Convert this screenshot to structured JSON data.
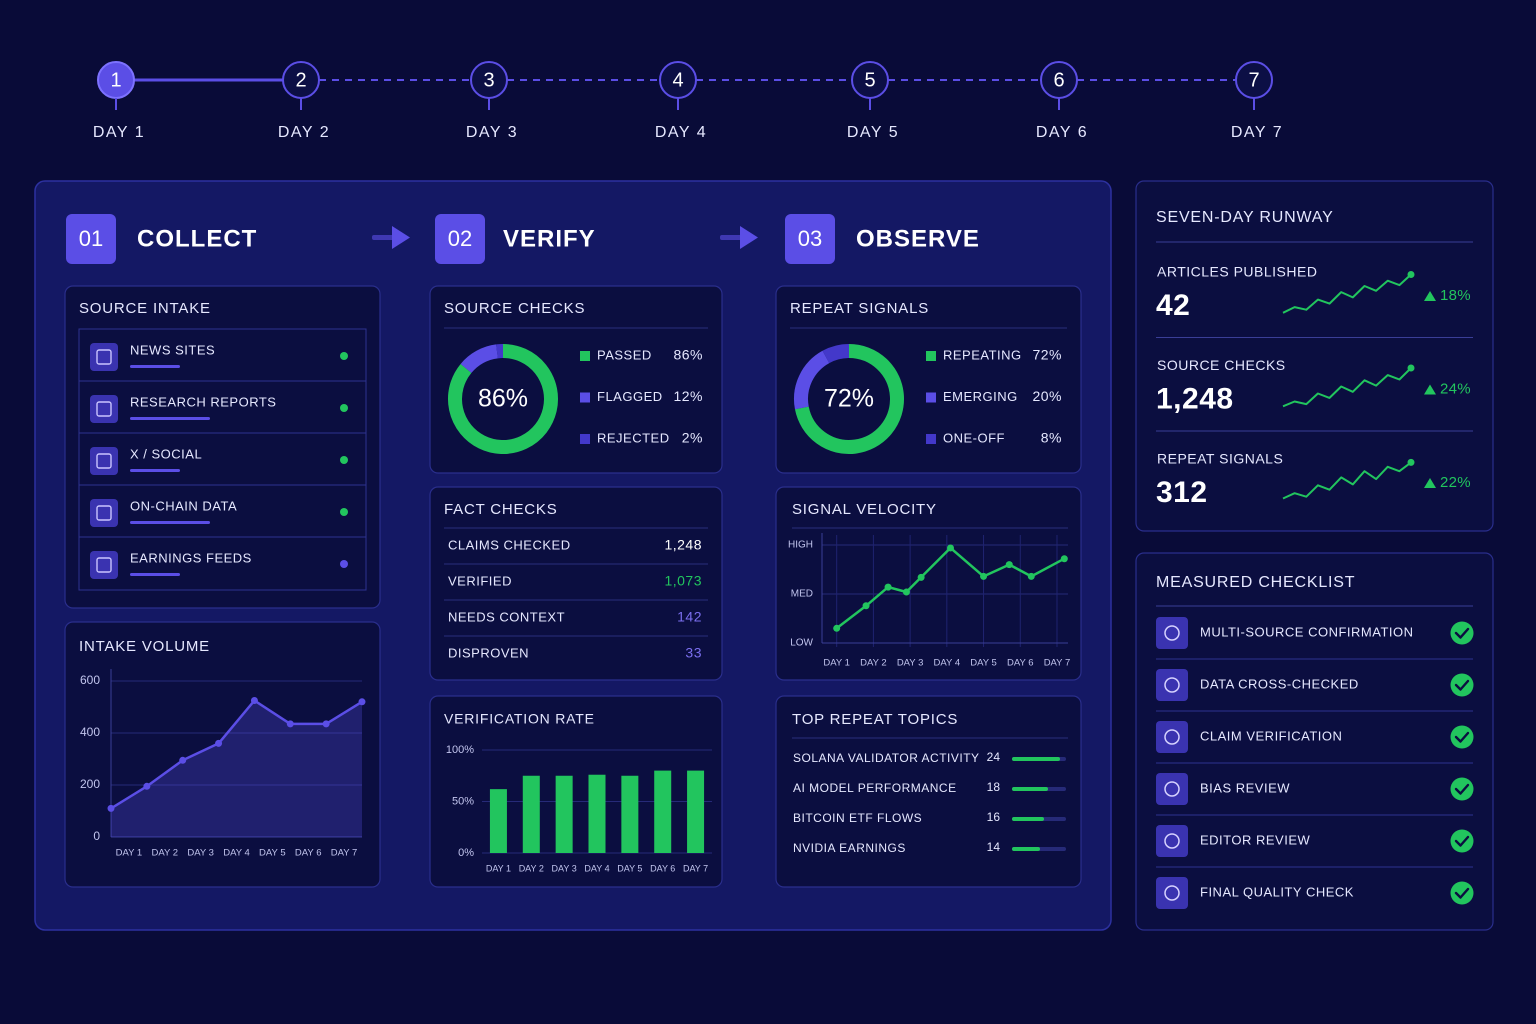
{
  "timeline": {
    "days": [
      {
        "number": 1,
        "label": "DAY 1"
      },
      {
        "number": 2,
        "label": "DAY 2"
      },
      {
        "number": 3,
        "label": "DAY 3"
      },
      {
        "number": 4,
        "label": "DAY 4"
      },
      {
        "number": 5,
        "label": "DAY 5"
      },
      {
        "number": 6,
        "label": "DAY 6"
      },
      {
        "number": 7,
        "label": "DAY 7"
      }
    ],
    "active_day": 1
  },
  "stages": [
    {
      "number": "01",
      "title": "COLLECT"
    },
    {
      "number": "02",
      "title": "VERIFY"
    },
    {
      "number": "03",
      "title": "OBSERVE"
    }
  ],
  "source_intake": {
    "title": "SOURCE INTAKE",
    "items": [
      {
        "label": "NEWS SITES",
        "status_color": "#22c55e"
      },
      {
        "label": "RESEARCH REPORTS",
        "status_color": "#22c55e"
      },
      {
        "label": "X / SOCIAL",
        "status_color": "#22c55e"
      },
      {
        "label": "ON-CHAIN DATA",
        "status_color": "#22c55e"
      },
      {
        "label": "EARNINGS FEEDS",
        "status_color": "#5b4ee6"
      }
    ]
  },
  "intake_volume": {
    "title": "INTAKE VOLUME",
    "type": "line",
    "color": "#5b4ee6",
    "x": [
      0,
      1,
      2,
      3,
      4,
      5,
      6,
      7
    ],
    "values": [
      110,
      195,
      295,
      360,
      525,
      435,
      435,
      520
    ],
    "xlim": [
      0,
      7
    ],
    "xticks": [
      {
        "value": 0.5,
        "label": "DAY 1"
      },
      {
        "value": 1.5,
        "label": "DAY 2"
      },
      {
        "value": 2.5,
        "label": "DAY 3"
      },
      {
        "value": 3.5,
        "label": "DAY 4"
      },
      {
        "value": 4.5,
        "label": "DAY 5"
      },
      {
        "value": 5.5,
        "label": "DAY 6"
      },
      {
        "value": 6.5,
        "label": "DAY 7"
      }
    ],
    "ylim": [
      0,
      600
    ],
    "yticks": [
      0,
      200,
      400,
      600
    ],
    "grid": true
  },
  "source_checks": {
    "title": "SOURCE CHECKS",
    "type": "donut",
    "center_label": "86%",
    "labels": [
      "PASSED",
      "FLAGGED",
      "REJECTED"
    ],
    "values": [
      86,
      12,
      2
    ],
    "value_labels": [
      "86%",
      "12%",
      "2%"
    ],
    "colors": [
      "#22c55e",
      "#5b4ee6",
      "#4338ca"
    ]
  },
  "fact_checks": {
    "title": "FACT CHECKS",
    "rows": [
      {
        "label": "CLAIMS CHECKED",
        "value": "1,248",
        "color": "#ffffff"
      },
      {
        "label": "VERIFIED",
        "value": "1,073",
        "color": "#22c55e"
      },
      {
        "label": "NEEDS CONTEXT",
        "value": "142",
        "color": "#7b6ff0"
      },
      {
        "label": "DISPROVEN",
        "value": "33",
        "color": "#7b6ff0"
      }
    ]
  },
  "verification_rate": {
    "title": "VERIFICATION RATE",
    "type": "bar",
    "color": "#22c55e",
    "categories": [
      "DAY 1",
      "DAY 2",
      "DAY 3",
      "DAY 4",
      "DAY 5",
      "DAY 6",
      "DAY 7"
    ],
    "values": [
      62,
      75,
      75,
      76,
      75,
      80,
      80
    ],
    "ylim": [
      0,
      100
    ],
    "yticks": [
      {
        "value": 0,
        "label": "0%"
      },
      {
        "value": 50,
        "label": "50%"
      },
      {
        "value": 100,
        "label": "100%"
      }
    ],
    "grid": true
  },
  "repeat_signals": {
    "title": "REPEAT SIGNALS",
    "type": "donut",
    "center_label": "72%",
    "labels": [
      "REPEATING",
      "EMERGING",
      "ONE-OFF"
    ],
    "values": [
      72,
      20,
      8
    ],
    "value_labels": [
      "72%",
      "20%",
      "8%"
    ],
    "colors": [
      "#22c55e",
      "#5b4ee6",
      "#4338ca"
    ]
  },
  "signal_velocity": {
    "title": "SIGNAL VELOCITY",
    "type": "line",
    "color": "#22c55e",
    "x": [
      1.0,
      1.8,
      2.4,
      2.9,
      3.3,
      4.1,
      5.0,
      5.7,
      6.3,
      7.2
    ],
    "values": [
      15,
      38,
      57,
      52,
      67,
      97,
      68,
      80,
      68,
      86
    ],
    "xlim": [
      0.6,
      7.3
    ],
    "xticks": [
      {
        "value": 1,
        "label": "DAY 1"
      },
      {
        "value": 2,
        "label": "DAY 2"
      },
      {
        "value": 3,
        "label": "DAY 3"
      },
      {
        "value": 4,
        "label": "DAY 4"
      },
      {
        "value": 5,
        "label": "DAY 5"
      },
      {
        "value": 6,
        "label": "DAY 6"
      },
      {
        "value": 7,
        "label": "DAY 7"
      }
    ],
    "ylim": [
      0,
      100
    ],
    "yticks": [
      {
        "value": 0,
        "label": "LOW"
      },
      {
        "value": 50,
        "label": "MED"
      },
      {
        "value": 100,
        "label": "HIGH"
      }
    ],
    "grid": true
  },
  "top_repeat_topics": {
    "title": "TOP REPEAT TOPICS",
    "type": "bar",
    "color": "#22c55e",
    "xlim": [
      0,
      27
    ],
    "categories": [
      "SOLANA VALIDATOR ACTIVITY",
      "AI MODEL PERFORMANCE",
      "BITCOIN ETF FLOWS",
      "NVIDIA EARNINGS"
    ],
    "values": [
      24,
      18,
      16,
      14
    ]
  },
  "runway": {
    "title": "SEVEN-DAY RUNWAY",
    "trend_ylim": [
      0,
      100
    ],
    "trend_color": "#22c55e",
    "metrics": [
      {
        "label": "ARTICLES PUBLISHED",
        "value": "42",
        "change": "18%",
        "trend": [
          5,
          18,
          12,
          35,
          26,
          52,
          40,
          66,
          55,
          78,
          68,
          92
        ]
      },
      {
        "label": "SOURCE CHECKS",
        "value": "1,248",
        "change": "24%",
        "trend": [
          5,
          16,
          10,
          34,
          24,
          50,
          38,
          64,
          52,
          76,
          66,
          92
        ]
      },
      {
        "label": "REPEAT SIGNALS",
        "value": "312",
        "change": "22%",
        "trend": [
          8,
          20,
          12,
          38,
          28,
          56,
          40,
          70,
          52,
          80,
          70,
          90
        ]
      }
    ]
  },
  "checklist": {
    "title": "MEASURED CHECKLIST",
    "items": [
      "MULTI-SOURCE CONFIRMATION",
      "DATA CROSS-CHECKED",
      "CLAIM VERIFICATION",
      "BIAS REVIEW",
      "EDITOR REVIEW",
      "FINAL QUALITY CHECK"
    ]
  }
}
